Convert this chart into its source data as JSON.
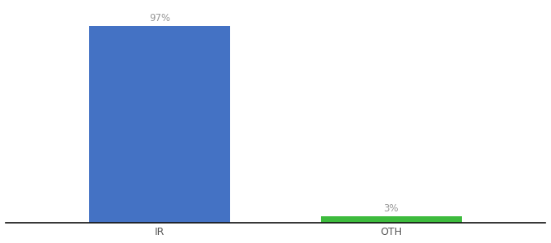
{
  "categories": [
    "IR",
    "OTH"
  ],
  "values": [
    97,
    3
  ],
  "bar_colors": [
    "#4472c4",
    "#3dbb3d"
  ],
  "value_labels": [
    "97%",
    "3%"
  ],
  "ylim": [
    0,
    107
  ],
  "background_color": "#ffffff",
  "label_color": "#999999",
  "label_fontsize": 8.5,
  "tick_fontsize": 9,
  "bar_width": 0.55,
  "xlim": [
    -0.3,
    1.8
  ]
}
